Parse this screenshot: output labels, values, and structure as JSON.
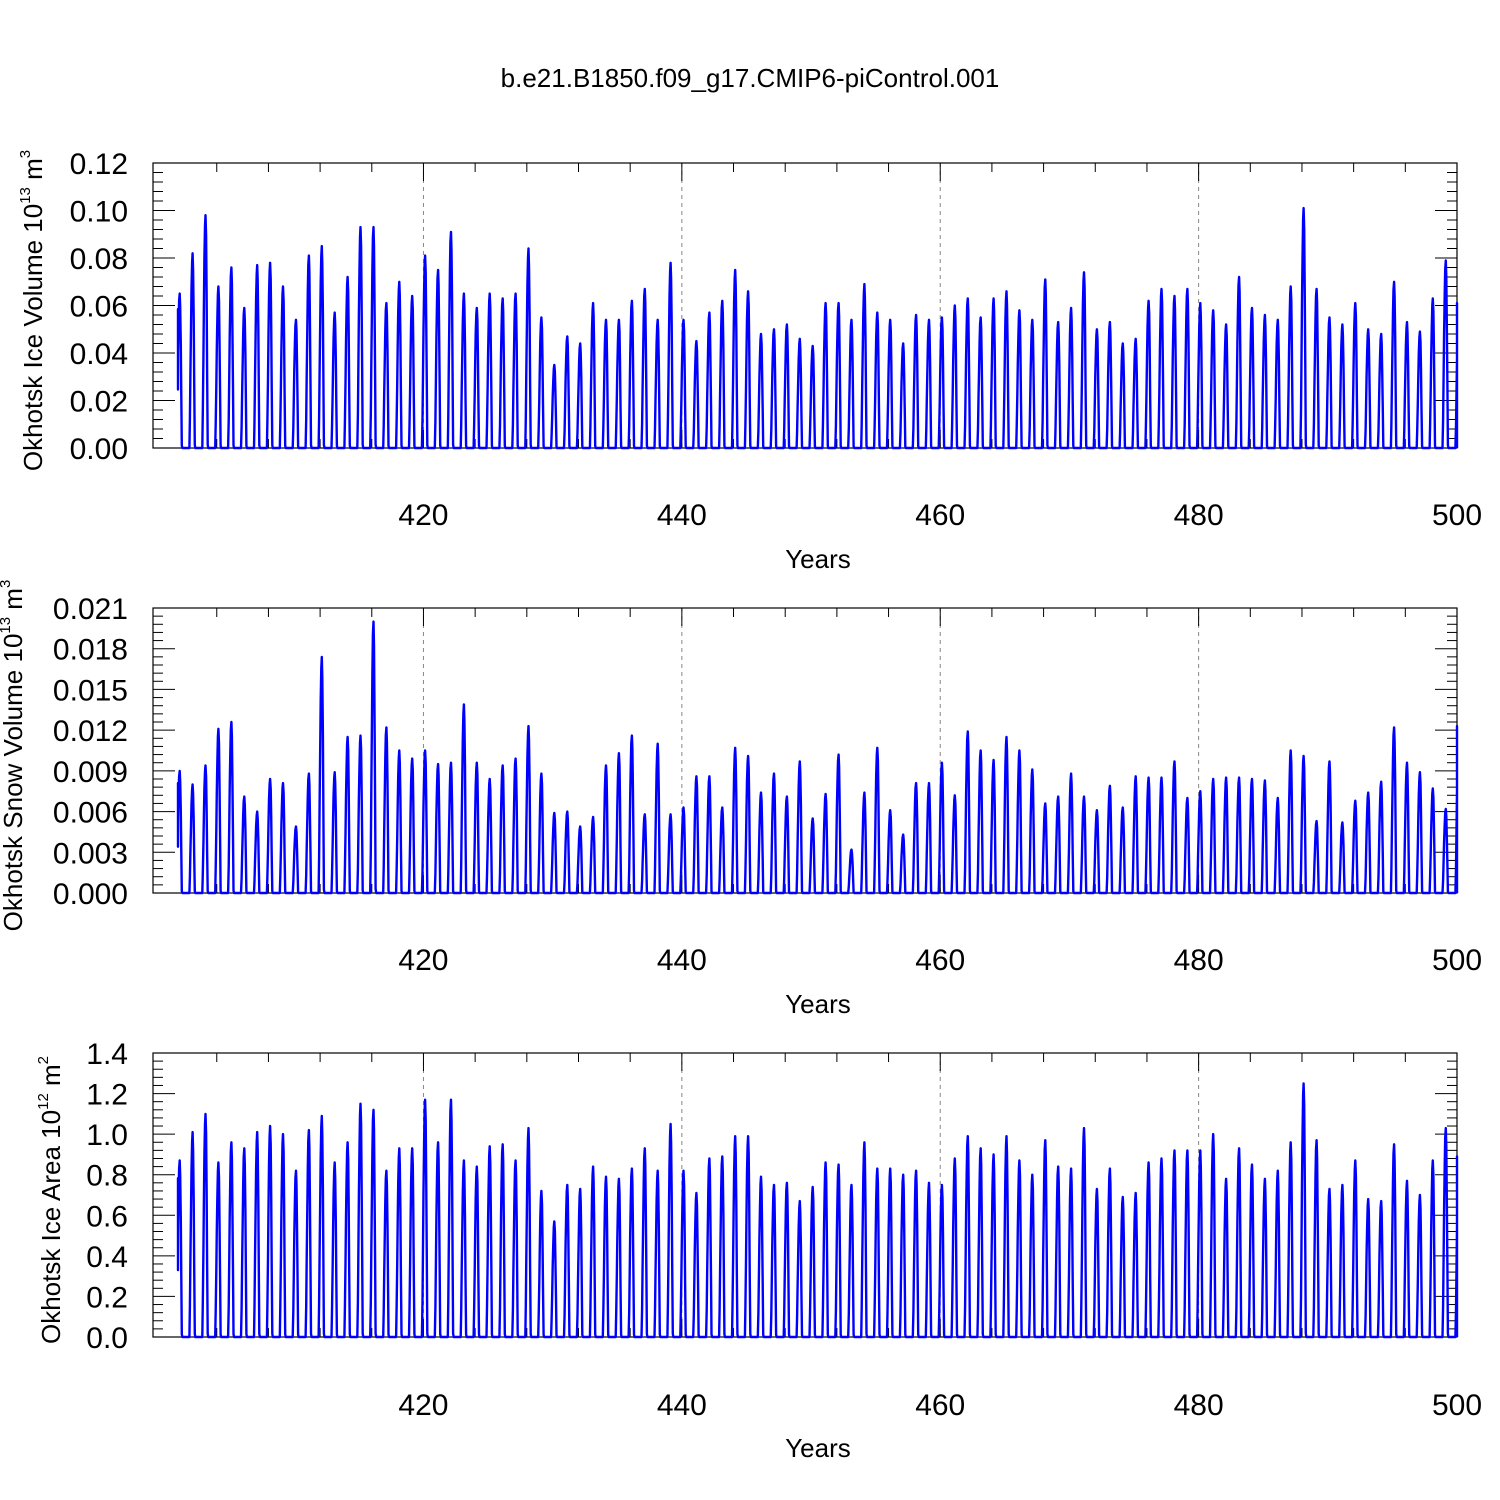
{
  "figure": {
    "title": "b.e21.B1850.f09_g17.CMIP6-piControl.001",
    "series_color": "#0000ff"
  },
  "chart_data": [
    {
      "type": "line",
      "ylabel": "Okhotsk Ice Volume 10",
      "ylabel_sup1": "13",
      "ylabel_unit": " m",
      "ylabel_sup2": "3",
      "xlabel": "Years",
      "xlim": [
        401,
        500
      ],
      "ylim": [
        0,
        0.12
      ],
      "xticks": [
        420,
        440,
        460,
        480,
        500
      ],
      "yticks": [
        0,
        0.02,
        0.04,
        0.06,
        0.08,
        0.1,
        0.12
      ],
      "ytick_labels": [
        "0.00",
        "0.02",
        "0.04",
        "0.06",
        "0.08",
        "0.10",
        "0.12"
      ],
      "grid": "vertical dashed at major x ticks",
      "series": [
        {
          "x_start_year": 401,
          "annual_peak": [
            0.065,
            0.082,
            0.098,
            0.068,
            0.076,
            0.059,
            0.077,
            0.078,
            0.068,
            0.054,
            0.081,
            0.085,
            0.057,
            0.072,
            0.093,
            0.093,
            0.061,
            0.07,
            0.064,
            0.081,
            0.075,
            0.091,
            0.065,
            0.059,
            0.065,
            0.063,
            0.065,
            0.084,
            0.055,
            0.035,
            0.047,
            0.044,
            0.061,
            0.054,
            0.054,
            0.062,
            0.067,
            0.054,
            0.078,
            0.054,
            0.045,
            0.057,
            0.062,
            0.075,
            0.066,
            0.048,
            0.05,
            0.052,
            0.046,
            0.043,
            0.061,
            0.061,
            0.054,
            0.069,
            0.057,
            0.054,
            0.044,
            0.056,
            0.054,
            0.055,
            0.06,
            0.063,
            0.055,
            0.063,
            0.066,
            0.058,
            0.054,
            0.071,
            0.053,
            0.059,
            0.074,
            0.05,
            0.053,
            0.044,
            0.046,
            0.062,
            0.067,
            0.064,
            0.067,
            0.061,
            0.058,
            0.052,
            0.072,
            0.059,
            0.056,
            0.054,
            0.068,
            0.101,
            0.067,
            0.055,
            0.052,
            0.061,
            0.05,
            0.048,
            0.07,
            0.053,
            0.049,
            0.063,
            0.079,
            0.061
          ]
        }
      ]
    },
    {
      "type": "line",
      "ylabel": "Okhotsk Snow Volume 10",
      "ylabel_sup1": "13",
      "ylabel_unit": " m",
      "ylabel_sup2": "3",
      "xlabel": "Years",
      "xlim": [
        401,
        500
      ],
      "ylim": [
        0,
        0.021
      ],
      "xticks": [
        420,
        440,
        460,
        480,
        500
      ],
      "yticks": [
        0,
        0.003,
        0.006,
        0.009,
        0.012,
        0.015,
        0.018,
        0.021
      ],
      "ytick_labels": [
        "0.000",
        "0.003",
        "0.006",
        "0.009",
        "0.012",
        "0.015",
        "0.018",
        "0.021"
      ],
      "grid": "vertical dashed at major x ticks",
      "series": [
        {
          "x_start_year": 401,
          "annual_peak": [
            0.009,
            0.008,
            0.0094,
            0.0121,
            0.0126,
            0.0071,
            0.006,
            0.0084,
            0.0081,
            0.0049,
            0.0088,
            0.0174,
            0.0089,
            0.0115,
            0.0116,
            0.02,
            0.0122,
            0.0105,
            0.0099,
            0.0105,
            0.0095,
            0.0096,
            0.0139,
            0.0096,
            0.0084,
            0.0094,
            0.0099,
            0.0123,
            0.0088,
            0.0059,
            0.006,
            0.0049,
            0.0056,
            0.0094,
            0.0103,
            0.0116,
            0.0058,
            0.011,
            0.0058,
            0.0063,
            0.0086,
            0.0086,
            0.0063,
            0.0107,
            0.0101,
            0.0074,
            0.0088,
            0.0071,
            0.0097,
            0.0055,
            0.0073,
            0.0102,
            0.0032,
            0.0074,
            0.0107,
            0.0061,
            0.0043,
            0.0081,
            0.0081,
            0.0096,
            0.0072,
            0.0119,
            0.0105,
            0.0098,
            0.0115,
            0.0105,
            0.0091,
            0.0066,
            0.0071,
            0.0088,
            0.0071,
            0.0061,
            0.0079,
            0.0063,
            0.0086,
            0.0085,
            0.0085,
            0.0097,
            0.007,
            0.0075,
            0.0084,
            0.0085,
            0.0085,
            0.0084,
            0.0083,
            0.007,
            0.0105,
            0.0101,
            0.0053,
            0.0097,
            0.0052,
            0.0068,
            0.0074,
            0.0082,
            0.0122,
            0.0096,
            0.0089,
            0.0077,
            0.0062,
            0.0123
          ]
        }
      ]
    },
    {
      "type": "line",
      "ylabel": "Okhotsk Ice Area 10",
      "ylabel_sup1": "12",
      "ylabel_unit": " m",
      "ylabel_sup2": "2",
      "xlabel": "Years",
      "xlim": [
        401,
        500
      ],
      "ylim": [
        0,
        1.4
      ],
      "xticks": [
        420,
        440,
        460,
        480,
        500
      ],
      "yticks": [
        0,
        0.2,
        0.4,
        0.6,
        0.8,
        1,
        1.2,
        1.4
      ],
      "ytick_labels": [
        "0.0",
        "0.2",
        "0.4",
        "0.6",
        "0.8",
        "1.0",
        "1.2",
        "1.4"
      ],
      "grid": "vertical dashed at major x ticks",
      "series": [
        {
          "x_start_year": 401,
          "annual_peak": [
            0.87,
            1.01,
            1.1,
            0.86,
            0.96,
            0.93,
            1.01,
            1.04,
            1,
            0.82,
            1.02,
            1.09,
            0.86,
            0.96,
            1.15,
            1.12,
            0.82,
            0.93,
            0.93,
            1.17,
            0.96,
            1.17,
            0.87,
            0.84,
            0.94,
            0.95,
            0.87,
            1.03,
            0.72,
            0.57,
            0.75,
            0.73,
            0.84,
            0.79,
            0.78,
            0.83,
            0.93,
            0.82,
            1.05,
            0.82,
            0.71,
            0.88,
            0.89,
            0.99,
            0.99,
            0.79,
            0.75,
            0.76,
            0.67,
            0.74,
            0.86,
            0.85,
            0.75,
            0.96,
            0.83,
            0.83,
            0.8,
            0.82,
            0.76,
            0.75,
            0.88,
            0.99,
            0.93,
            0.9,
            0.99,
            0.87,
            0.8,
            0.97,
            0.84,
            0.83,
            1.03,
            0.73,
            0.83,
            0.69,
            0.71,
            0.86,
            0.88,
            0.92,
            0.92,
            0.92,
            1,
            0.78,
            0.93,
            0.85,
            0.78,
            0.82,
            0.96,
            1.25,
            0.97,
            0.73,
            0.75,
            0.87,
            0.68,
            0.67,
            0.95,
            0.77,
            0.7,
            0.87,
            1.03,
            0.89
          ]
        }
      ]
    }
  ]
}
